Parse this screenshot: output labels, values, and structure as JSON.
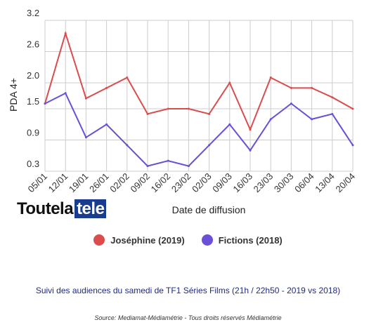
{
  "chart_data": {
    "type": "line",
    "categories": [
      "05/01",
      "12/01",
      "19/01",
      "26/01",
      "02/02",
      "09/02",
      "16/02",
      "23/02",
      "02/03",
      "09/03",
      "16/03",
      "23/03",
      "30/03",
      "06/04",
      "13/04",
      "20/04"
    ],
    "series": [
      {
        "name": "Joséphine (2019)",
        "color": "#db4c4c",
        "values": [
          1.6,
          2.95,
          1.7,
          1.9,
          2.1,
          1.4,
          1.5,
          1.5,
          1.4,
          2.0,
          1.1,
          2.1,
          1.9,
          1.9,
          1.72,
          1.5
        ]
      },
      {
        "name": "Fictions (2018)",
        "color": "#6a4fd8",
        "values": [
          1.6,
          1.8,
          0.95,
          1.2,
          0.8,
          0.4,
          0.5,
          0.4,
          0.8,
          1.2,
          0.7,
          1.3,
          1.6,
          1.3,
          1.4,
          0.8
        ]
      }
    ],
    "xlabel": "Date de diffusion",
    "ylabel": "PDA 4+",
    "yticks": [
      "0.3",
      "0.9",
      "1.5",
      "2.0",
      "2.6",
      "3.2"
    ],
    "ylim": [
      0.3,
      3.2
    ],
    "grid": true,
    "legend_position": "bottom"
  },
  "brand": {
    "part1": "Toutela",
    "part2": "tele"
  },
  "subtitle": "Suivi des audiences du samedi de TF1 Séries Films (21h / 22h50 - 2019 vs 2018)",
  "source": "Source: Mediamat-Médiamétrie - Tous droits réservés Médiamétrie"
}
